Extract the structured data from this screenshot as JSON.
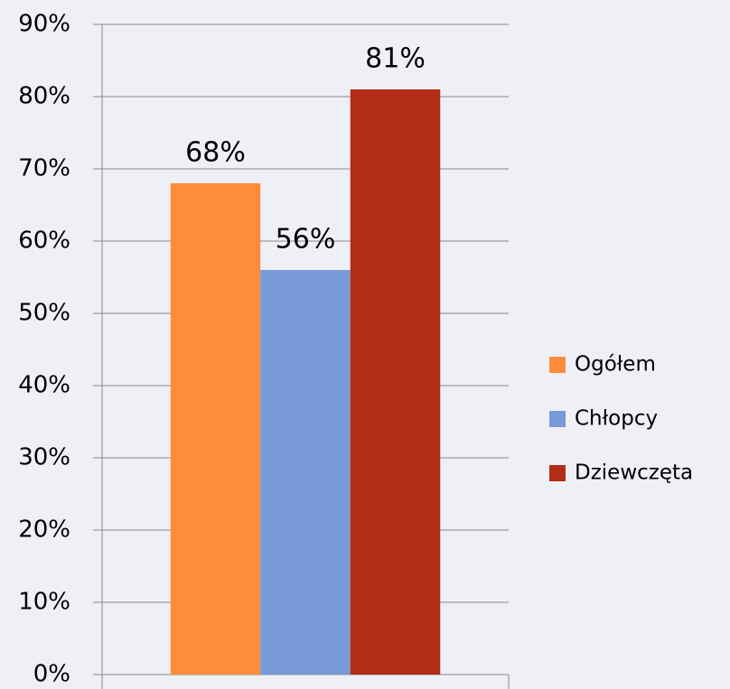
{
  "chart_data": {
    "type": "bar",
    "categories": [
      null
    ],
    "series": [
      {
        "name": "Ogółem",
        "color": "#ff8c3a",
        "values": [
          68
        ],
        "value_labels": [
          "68%"
        ]
      },
      {
        "name": "Chłopcy",
        "color": "#789ad6",
        "values": [
          56
        ],
        "value_labels": [
          "56%"
        ]
      },
      {
        "name": "Dziewczęta",
        "color": "#b22c18",
        "values": [
          81
        ],
        "value_labels": [
          "81%"
        ]
      }
    ],
    "ylim": [
      0,
      90
    ],
    "yticks": [
      {
        "value": 0,
        "label": "0%"
      },
      {
        "value": 10,
        "label": "10%"
      },
      {
        "value": 20,
        "label": "20%"
      },
      {
        "value": 30,
        "label": "30%"
      },
      {
        "value": 40,
        "label": "40%"
      },
      {
        "value": 50,
        "label": "50%"
      },
      {
        "value": 60,
        "label": "60%"
      },
      {
        "value": 70,
        "label": "70%"
      },
      {
        "value": 80,
        "label": "80%"
      },
      {
        "value": 90,
        "label": "90%"
      }
    ],
    "grid": true,
    "legend": "right"
  }
}
